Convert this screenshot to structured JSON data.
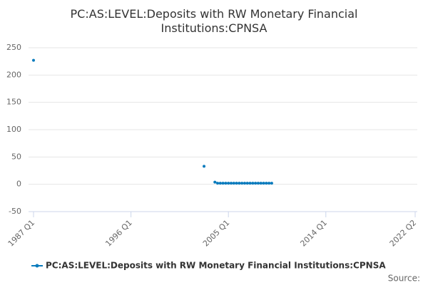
{
  "chart_data": {
    "type": "line",
    "title": "PC:AS:LEVEL:Deposits with RW Monetary Financial Institutions:CPNSA",
    "source": "Source:",
    "xlim": [
      "1987 Q1",
      "2022 Q2"
    ],
    "xticks": [
      "1987 Q1",
      "1996 Q1",
      "2005 Q1",
      "2014 Q1",
      "2022 Q2"
    ],
    "ylim": [
      -50,
      250
    ],
    "yticks": [
      -50,
      0,
      50,
      100,
      150,
      200,
      250
    ],
    "grid": true,
    "series": [
      {
        "name": "PC:AS:LEVEL:Deposits with RW Monetary Financial Institutions:CPNSA",
        "color": "#0a7bbd",
        "x": [
          "1987 Q1",
          "2002 Q4",
          "2003 Q4",
          "2004 Q1",
          "2004 Q2",
          "2004 Q3",
          "2004 Q4",
          "2005 Q1",
          "2005 Q2",
          "2005 Q3",
          "2005 Q4",
          "2006 Q1",
          "2006 Q2",
          "2006 Q3",
          "2006 Q4",
          "2007 Q1",
          "2007 Q2",
          "2007 Q3",
          "2007 Q4",
          "2008 Q1",
          "2008 Q2",
          "2008 Q3",
          "2008 Q4",
          "2009 Q1"
        ],
        "values": [
          227,
          33,
          4,
          2,
          2,
          2,
          2,
          2,
          2,
          2,
          2,
          2,
          2,
          2,
          2,
          2,
          2,
          2,
          2,
          2,
          2,
          2,
          2,
          2
        ]
      }
    ]
  }
}
